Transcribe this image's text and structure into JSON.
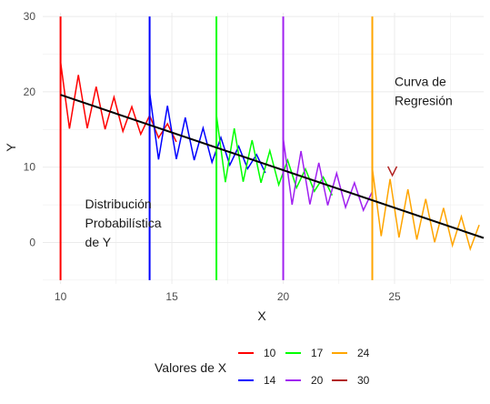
{
  "chart_data": {
    "type": "line",
    "xlabel": "X",
    "ylabel": "Y",
    "xlim": [
      9.2,
      29
    ],
    "ylim": [
      -5.5,
      30.5
    ],
    "x_ticks": [
      10,
      15,
      20,
      25
    ],
    "y_ticks": [
      0,
      10,
      20,
      30
    ],
    "grid": true,
    "legend": {
      "title": "Valores de X",
      "position": "bottom",
      "entries": [
        "10",
        "14",
        "17",
        "20",
        "24",
        "30"
      ]
    },
    "annotations": [
      {
        "name": "distribution-annotation",
        "lines": [
          "Distribución",
          "Probabilística",
          "de Y"
        ],
        "x": 11.1,
        "y": 4.5
      },
      {
        "name": "regression-annotation",
        "lines": [
          "Curva de",
          "Regresión"
        ],
        "x": 25.0,
        "y": 20.8
      }
    ],
    "regression_line": {
      "color": "#000000",
      "points": [
        [
          10,
          19.6
        ],
        [
          29,
          0.6
        ]
      ]
    },
    "series": [
      {
        "name": "10",
        "color": "#ff0000",
        "x_start": 10,
        "vertical_line": [
          -5,
          30
        ],
        "center": 19.5,
        "slope": -1.0,
        "amp_start": 4.5,
        "decay": 0.12,
        "dx": 0.4,
        "x_end": 15.5
      },
      {
        "name": "14",
        "color": "#0000ff",
        "x_start": 14,
        "vertical_line": [
          -5,
          30
        ],
        "center": 15.4,
        "slope": -1.0,
        "amp_start": 4.5,
        "decay": 0.12,
        "dx": 0.4,
        "x_end": 19.2
      },
      {
        "name": "17",
        "color": "#00ff00",
        "x_start": 17,
        "vertical_line": [
          -5,
          30
        ],
        "center": 12.4,
        "slope": -1.0,
        "amp_start": 4.5,
        "decay": 0.12,
        "dx": 0.4,
        "x_end": 22.2
      },
      {
        "name": "20",
        "color": "#a020f0",
        "x_start": 20,
        "vertical_line": [
          -5,
          30
        ],
        "center": 9.4,
        "slope": -1.0,
        "amp_start": 4.5,
        "decay": 0.12,
        "dx": 0.4,
        "x_end": 24.0
      },
      {
        "name": "24",
        "color": "#ffa500",
        "x_start": 24,
        "vertical_line": [
          -5,
          30
        ],
        "center": 5.4,
        "slope": -1.0,
        "amp_start": 4.5,
        "decay": 0.08,
        "dx": 0.4,
        "x_end": 29.0
      },
      {
        "name": "30",
        "color": "#b22222",
        "x_start": 30,
        "vertical_line": null,
        "center": 9.5,
        "slope": 0.0,
        "amp_start": 0.6,
        "decay": 0.0,
        "dx": 0.2,
        "x_range_visible": [
          24.7,
          25.1
        ]
      }
    ]
  }
}
